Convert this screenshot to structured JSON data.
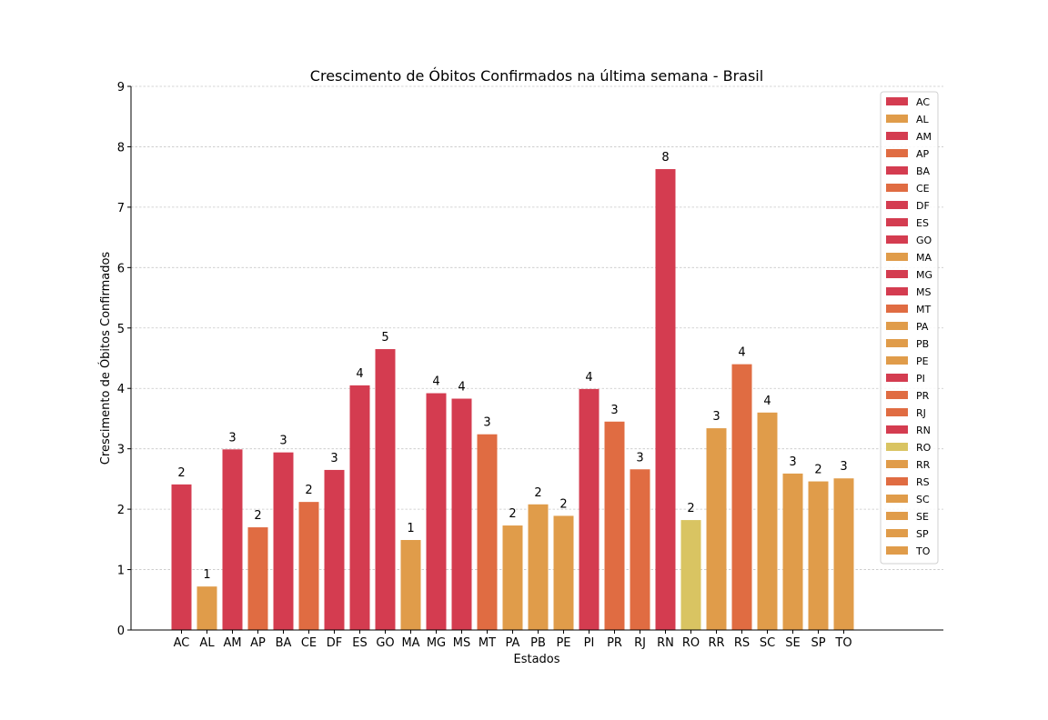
{
  "chart_data": {
    "type": "bar",
    "title": "Crescimento de Óbitos Confirmados na última semana - Brasil",
    "xlabel": "Estados",
    "ylabel": "Crescimento de Óbitos Confirmados",
    "ylim": [
      0,
      9
    ],
    "yticks": [
      "0",
      "1",
      "2",
      "3",
      "4",
      "5",
      "6",
      "7",
      "8",
      "9"
    ],
    "grid": true,
    "legend_position": "top-right",
    "categories": [
      "AC",
      "AL",
      "AM",
      "AP",
      "BA",
      "CE",
      "DF",
      "ES",
      "GO",
      "MA",
      "MG",
      "MS",
      "MT",
      "PA",
      "PB",
      "PE",
      "PI",
      "PR",
      "RJ",
      "RN",
      "RO",
      "RR",
      "RS",
      "SC",
      "SE",
      "SP",
      "TO"
    ],
    "values": [
      2.41,
      0.72,
      2.99,
      1.7,
      2.94,
      2.12,
      2.65,
      4.05,
      4.65,
      1.49,
      3.92,
      3.83,
      3.24,
      1.73,
      2.08,
      1.89,
      3.99,
      3.45,
      2.66,
      7.63,
      1.82,
      3.34,
      4.4,
      3.6,
      2.59,
      2.46,
      2.51
    ],
    "data_labels": [
      "2",
      "1",
      "3",
      "2",
      "3",
      "2",
      "3",
      "4",
      "5",
      "1",
      "4",
      "4",
      "3",
      "2",
      "2",
      "2",
      "4",
      "3",
      "3",
      "8",
      "2",
      "3",
      "4",
      "4",
      "3",
      "2",
      "3"
    ],
    "colors": [
      "#d43c50",
      "#e09c4a",
      "#d43c50",
      "#e06c42",
      "#d43c50",
      "#e06c42",
      "#d43c50",
      "#d43c50",
      "#d43c50",
      "#e09c4a",
      "#d43c50",
      "#d43c50",
      "#e06c42",
      "#e09c4a",
      "#e09c4a",
      "#e09c4a",
      "#d43c50",
      "#e06c42",
      "#e06c42",
      "#d43c50",
      "#d9c462",
      "#e09c4a",
      "#e06c42",
      "#e09c4a",
      "#e09c4a",
      "#e09c4a",
      "#e09c4a"
    ]
  }
}
